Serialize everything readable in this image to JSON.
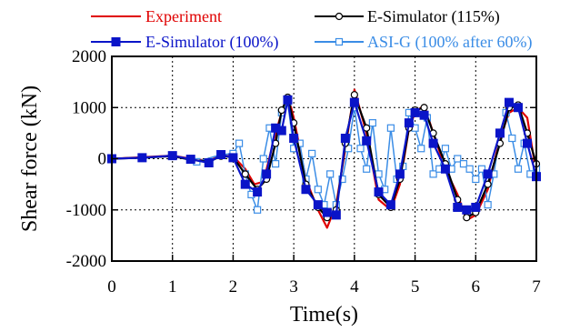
{
  "chart_data": {
    "type": "line",
    "title": "",
    "xlabel": "Time(s)",
    "ylabel": "Shear force (kN)",
    "xlim": [
      0,
      7
    ],
    "ylim": [
      -2000,
      2000
    ],
    "xticks": [
      "0",
      "1",
      "2",
      "3",
      "4",
      "5",
      "6",
      "7"
    ],
    "yticks": [
      "-2000",
      "-1000",
      "0",
      "1000",
      "2000"
    ],
    "grid": "dotted",
    "legend_position": "top",
    "series": [
      {
        "name": "Experiment",
        "color": "#e00000",
        "marker": "none",
        "x": [
          0,
          0.5,
          1.0,
          1.3,
          1.6,
          1.8,
          2.0,
          2.2,
          2.35,
          2.5,
          2.7,
          2.8,
          2.9,
          3.0,
          3.2,
          3.4,
          3.55,
          3.7,
          3.85,
          4.0,
          4.2,
          4.4,
          4.6,
          4.75,
          4.9,
          5.0,
          5.15,
          5.3,
          5.5,
          5.7,
          5.85,
          6.0,
          6.2,
          6.4,
          6.55,
          6.7,
          6.85,
          7.0
        ],
        "y": [
          0,
          30,
          60,
          0,
          -40,
          60,
          50,
          -200,
          -500,
          -450,
          500,
          900,
          1250,
          800,
          -400,
          -1000,
          -1350,
          -900,
          200,
          1350,
          500,
          -800,
          -1000,
          -500,
          600,
          900,
          1050,
          500,
          -200,
          -700,
          -1200,
          -1100,
          -600,
          400,
          900,
          1000,
          800,
          -300
        ]
      },
      {
        "name": "E-Simulator (115%)",
        "color": "#000000",
        "marker": "circle",
        "x": [
          0,
          0.5,
          1.0,
          1.3,
          1.6,
          1.8,
          2.0,
          2.2,
          2.4,
          2.55,
          2.7,
          2.8,
          2.9,
          3.0,
          3.2,
          3.4,
          3.55,
          3.7,
          3.85,
          4.0,
          4.2,
          4.4,
          4.6,
          4.75,
          4.9,
          5.0,
          5.15,
          5.3,
          5.5,
          5.7,
          5.85,
          6.0,
          6.2,
          6.4,
          6.55,
          6.7,
          6.85,
          7.0
        ],
        "y": [
          0,
          20,
          50,
          -20,
          -60,
          50,
          30,
          -300,
          -600,
          -400,
          300,
          950,
          1200,
          700,
          -500,
          -950,
          -1150,
          -1000,
          300,
          1250,
          600,
          -700,
          -950,
          -400,
          600,
          950,
          1000,
          500,
          -100,
          -800,
          -1150,
          -1050,
          -500,
          300,
          1000,
          1050,
          500,
          -100
        ]
      },
      {
        "name": "E-Simulator (100%)",
        "color": "#0a14c8",
        "marker": "square",
        "x": [
          0,
          0.5,
          1.0,
          1.3,
          1.6,
          1.8,
          2.0,
          2.2,
          2.4,
          2.55,
          2.7,
          2.8,
          2.9,
          3.0,
          3.2,
          3.4,
          3.55,
          3.7,
          3.85,
          4.0,
          4.2,
          4.4,
          4.6,
          4.75,
          4.9,
          5.0,
          5.15,
          5.3,
          5.5,
          5.7,
          5.85,
          6.0,
          6.2,
          6.4,
          6.55,
          6.7,
          6.85,
          7.0
        ],
        "y": [
          0,
          20,
          60,
          -10,
          -80,
          80,
          20,
          -500,
          -650,
          -300,
          600,
          550,
          1150,
          400,
          -600,
          -900,
          -1050,
          -1100,
          400,
          1100,
          350,
          -650,
          -900,
          -300,
          700,
          900,
          850,
          300,
          -200,
          -950,
          -1000,
          -950,
          -300,
          500,
          1100,
          1000,
          300,
          -350
        ]
      },
      {
        "name": "ASI-G (100% after 60%)",
        "color": "#3b8de6",
        "marker": "square-open",
        "x": [
          0,
          0.5,
          1.0,
          1.4,
          1.8,
          2.0,
          2.1,
          2.2,
          2.3,
          2.4,
          2.5,
          2.6,
          2.7,
          2.8,
          2.9,
          3.0,
          3.1,
          3.2,
          3.3,
          3.4,
          3.5,
          3.6,
          3.7,
          3.8,
          3.9,
          4.0,
          4.1,
          4.2,
          4.3,
          4.4,
          4.5,
          4.6,
          4.7,
          4.8,
          4.9,
          5.0,
          5.1,
          5.2,
          5.3,
          5.4,
          5.5,
          5.6,
          5.7,
          5.8,
          5.9,
          6.0,
          6.1,
          6.2,
          6.3,
          6.4,
          6.5,
          6.6,
          6.7,
          6.8,
          6.9,
          7.0
        ],
        "y": [
          0,
          10,
          50,
          -60,
          80,
          100,
          300,
          -300,
          -700,
          -1000,
          0,
          600,
          -100,
          900,
          1100,
          200,
          300,
          -400,
          100,
          -600,
          -900,
          -300,
          -900,
          -400,
          200,
          1000,
          200,
          -200,
          700,
          -300,
          -600,
          600,
          -400,
          -150,
          900,
          600,
          200,
          800,
          -300,
          -200,
          200,
          -200,
          0,
          -100,
          -200,
          -400,
          -200,
          -900,
          -300,
          500,
          900,
          400,
          -200,
          300,
          -300,
          -200
        ]
      }
    ]
  }
}
